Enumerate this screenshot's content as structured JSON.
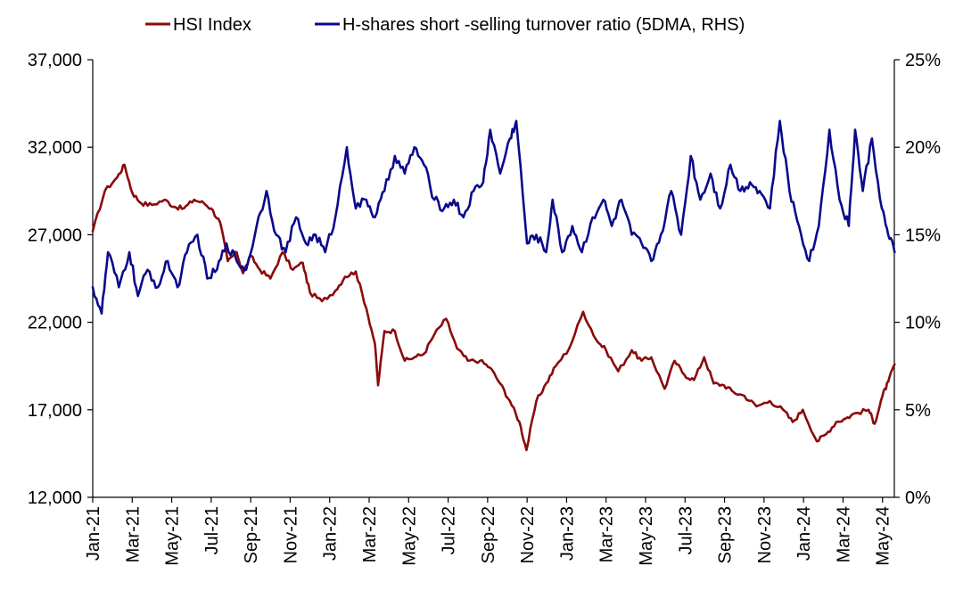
{
  "chart_data": {
    "type": "line",
    "legend": {
      "placement": "top",
      "items": [
        {
          "label": "HSI Index",
          "color": "#8B0A0A"
        },
        {
          "label": "H-shares short -selling turnover ratio (5DMA, RHS)",
          "color": "#0A0A8C"
        }
      ]
    },
    "x_tick_labels": [
      "Jan-21",
      "Mar-21",
      "May-21",
      "Jul-21",
      "Sep-21",
      "Nov-21",
      "Jan-22",
      "Mar-22",
      "May-22",
      "Jul-22",
      "Sep-22",
      "Nov-22",
      "Jan-23",
      "Mar-23",
      "May-23",
      "Jul-23",
      "Sep-23",
      "Nov-23",
      "Jan-24",
      "Mar-24",
      "May-24"
    ],
    "x_range_months": [
      0,
      40.6
    ],
    "y_left": {
      "range": [
        12000,
        37000
      ],
      "ticks": [
        12000,
        17000,
        22000,
        27000,
        32000,
        37000
      ],
      "tick_labels": [
        "12,000",
        "17,000",
        "22,000",
        "27,000",
        "32,000",
        "37,000"
      ]
    },
    "y_right": {
      "range": [
        0,
        25
      ],
      "ticks": [
        0,
        5,
        10,
        15,
        20,
        25
      ],
      "tick_labels": [
        "0%",
        "5%",
        "10%",
        "15%",
        "20%",
        "25%"
      ]
    },
    "grid": false,
    "series": [
      {
        "name": "HSI Index",
        "axis": "left",
        "color": "#8B0A0A",
        "points": [
          {
            "x": "2021-01-01",
            "y": 27200
          },
          {
            "x": "2021-01-20",
            "y": 29500
          },
          {
            "x": "2021-02-08",
            "y": 30300
          },
          {
            "x": "2021-02-18",
            "y": 31000
          },
          {
            "x": "2021-03-01",
            "y": 29400
          },
          {
            "x": "2021-03-15",
            "y": 28800
          },
          {
            "x": "2021-04-01",
            "y": 28700
          },
          {
            "x": "2021-04-20",
            "y": 29000
          },
          {
            "x": "2021-05-05",
            "y": 28600
          },
          {
            "x": "2021-05-20",
            "y": 28500
          },
          {
            "x": "2021-06-05",
            "y": 29000
          },
          {
            "x": "2021-06-20",
            "y": 28800
          },
          {
            "x": "2021-07-01",
            "y": 28500
          },
          {
            "x": "2021-07-15",
            "y": 27700
          },
          {
            "x": "2021-07-27",
            "y": 25500
          },
          {
            "x": "2021-08-10",
            "y": 26000
          },
          {
            "x": "2021-08-20",
            "y": 24800
          },
          {
            "x": "2021-09-01",
            "y": 25800
          },
          {
            "x": "2021-09-15",
            "y": 25000
          },
          {
            "x": "2021-10-01",
            "y": 24500
          },
          {
            "x": "2021-10-20",
            "y": 26000
          },
          {
            "x": "2021-11-05",
            "y": 25000
          },
          {
            "x": "2021-11-20",
            "y": 25400
          },
          {
            "x": "2021-12-01",
            "y": 23700
          },
          {
            "x": "2021-12-20",
            "y": 23200
          },
          {
            "x": "2022-01-10",
            "y": 23800
          },
          {
            "x": "2022-01-25",
            "y": 24600
          },
          {
            "x": "2022-02-10",
            "y": 24900
          },
          {
            "x": "2022-02-25",
            "y": 22800
          },
          {
            "x": "2022-03-10",
            "y": 20800
          },
          {
            "x": "2022-03-15",
            "y": 18400
          },
          {
            "x": "2022-03-25",
            "y": 21500
          },
          {
            "x": "2022-04-10",
            "y": 21500
          },
          {
            "x": "2022-04-25",
            "y": 19800
          },
          {
            "x": "2022-05-10",
            "y": 20000
          },
          {
            "x": "2022-05-25",
            "y": 20200
          },
          {
            "x": "2022-06-10",
            "y": 21300
          },
          {
            "x": "2022-06-28",
            "y": 22200
          },
          {
            "x": "2022-07-15",
            "y": 20500
          },
          {
            "x": "2022-08-01",
            "y": 19800
          },
          {
            "x": "2022-08-20",
            "y": 19800
          },
          {
            "x": "2022-09-05",
            "y": 19400
          },
          {
            "x": "2022-09-20",
            "y": 18500
          },
          {
            "x": "2022-10-05",
            "y": 17500
          },
          {
            "x": "2022-10-20",
            "y": 16300
          },
          {
            "x": "2022-10-31",
            "y": 14700
          },
          {
            "x": "2022-11-15",
            "y": 17500
          },
          {
            "x": "2022-11-30",
            "y": 18500
          },
          {
            "x": "2022-12-15",
            "y": 19500
          },
          {
            "x": "2023-01-05",
            "y": 20500
          },
          {
            "x": "2023-01-27",
            "y": 22600
          },
          {
            "x": "2023-02-15",
            "y": 21000
          },
          {
            "x": "2023-03-01",
            "y": 20400
          },
          {
            "x": "2023-03-20",
            "y": 19200
          },
          {
            "x": "2023-04-10",
            "y": 20400
          },
          {
            "x": "2023-04-25",
            "y": 19800
          },
          {
            "x": "2023-05-10",
            "y": 20000
          },
          {
            "x": "2023-05-31",
            "y": 18200
          },
          {
            "x": "2023-06-15",
            "y": 19800
          },
          {
            "x": "2023-06-30",
            "y": 19000
          },
          {
            "x": "2023-07-15",
            "y": 18700
          },
          {
            "x": "2023-07-31",
            "y": 20000
          },
          {
            "x": "2023-08-15",
            "y": 18500
          },
          {
            "x": "2023-08-31",
            "y": 18400
          },
          {
            "x": "2023-09-15",
            "y": 18000
          },
          {
            "x": "2023-10-01",
            "y": 17800
          },
          {
            "x": "2023-10-20",
            "y": 17200
          },
          {
            "x": "2023-11-10",
            "y": 17500
          },
          {
            "x": "2023-11-30",
            "y": 17000
          },
          {
            "x": "2023-12-15",
            "y": 16300
          },
          {
            "x": "2023-12-31",
            "y": 17000
          },
          {
            "x": "2024-01-22",
            "y": 15200
          },
          {
            "x": "2024-02-05",
            "y": 15600
          },
          {
            "x": "2024-02-20",
            "y": 16300
          },
          {
            "x": "2024-03-05",
            "y": 16500
          },
          {
            "x": "2024-03-20",
            "y": 16800
          },
          {
            "x": "2024-04-10",
            "y": 17000
          },
          {
            "x": "2024-04-19",
            "y": 16200
          },
          {
            "x": "2024-05-01",
            "y": 17800
          },
          {
            "x": "2024-05-10",
            "y": 18600
          },
          {
            "x": "2024-05-20",
            "y": 19600
          }
        ]
      },
      {
        "name": "H-shares short -selling turnover ratio (5DMA, RHS)",
        "axis": "right",
        "color": "#0A0A8C",
        "points": [
          {
            "x": "2021-01-01",
            "y": 12.0
          },
          {
            "x": "2021-01-15",
            "y": 10.5
          },
          {
            "x": "2021-01-25",
            "y": 14.0
          },
          {
            "x": "2021-02-10",
            "y": 12.0
          },
          {
            "x": "2021-02-25",
            "y": 14.0
          },
          {
            "x": "2021-03-10",
            "y": 11.5
          },
          {
            "x": "2021-03-25",
            "y": 13.0
          },
          {
            "x": "2021-04-10",
            "y": 12.0
          },
          {
            "x": "2021-04-25",
            "y": 13.5
          },
          {
            "x": "2021-05-10",
            "y": 12.0
          },
          {
            "x": "2021-05-25",
            "y": 14.0
          },
          {
            "x": "2021-06-10",
            "y": 15.0
          },
          {
            "x": "2021-06-25",
            "y": 12.5
          },
          {
            "x": "2021-07-10",
            "y": 13.0
          },
          {
            "x": "2021-07-25",
            "y": 14.5
          },
          {
            "x": "2021-08-10",
            "y": 13.5
          },
          {
            "x": "2021-08-25",
            "y": 13.0
          },
          {
            "x": "2021-09-10",
            "y": 15.5
          },
          {
            "x": "2021-09-25",
            "y": 17.5
          },
          {
            "x": "2021-10-10",
            "y": 15.0
          },
          {
            "x": "2021-10-25",
            "y": 14.0
          },
          {
            "x": "2021-11-10",
            "y": 16.0
          },
          {
            "x": "2021-11-25",
            "y": 14.5
          },
          {
            "x": "2021-12-10",
            "y": 15.0
          },
          {
            "x": "2021-12-25",
            "y": 14.0
          },
          {
            "x": "2022-01-10",
            "y": 16.0
          },
          {
            "x": "2022-01-28",
            "y": 20.0
          },
          {
            "x": "2022-02-10",
            "y": 16.5
          },
          {
            "x": "2022-02-25",
            "y": 17.0
          },
          {
            "x": "2022-03-10",
            "y": 16.0
          },
          {
            "x": "2022-03-25",
            "y": 17.5
          },
          {
            "x": "2022-04-10",
            "y": 19.5
          },
          {
            "x": "2022-04-25",
            "y": 18.5
          },
          {
            "x": "2022-05-10",
            "y": 20.0
          },
          {
            "x": "2022-05-25",
            "y": 19.0
          },
          {
            "x": "2022-06-10",
            "y": 17.0
          },
          {
            "x": "2022-06-25",
            "y": 16.5
          },
          {
            "x": "2022-07-10",
            "y": 17.0
          },
          {
            "x": "2022-07-25",
            "y": 16.0
          },
          {
            "x": "2022-08-10",
            "y": 17.5
          },
          {
            "x": "2022-08-25",
            "y": 18.0
          },
          {
            "x": "2022-09-05",
            "y": 21.0
          },
          {
            "x": "2022-09-20",
            "y": 18.5
          },
          {
            "x": "2022-10-05",
            "y": 20.5
          },
          {
            "x": "2022-10-15",
            "y": 21.5
          },
          {
            "x": "2022-11-01",
            "y": 14.5
          },
          {
            "x": "2022-11-15",
            "y": 15.0
          },
          {
            "x": "2022-11-30",
            "y": 14.0
          },
          {
            "x": "2022-12-10",
            "y": 17.0
          },
          {
            "x": "2022-12-25",
            "y": 14.0
          },
          {
            "x": "2023-01-10",
            "y": 15.5
          },
          {
            "x": "2023-01-25",
            "y": 14.0
          },
          {
            "x": "2023-02-10",
            "y": 16.0
          },
          {
            "x": "2023-02-25",
            "y": 17.0
          },
          {
            "x": "2023-03-10",
            "y": 15.5
          },
          {
            "x": "2023-03-25",
            "y": 17.0
          },
          {
            "x": "2023-04-10",
            "y": 15.0
          },
          {
            "x": "2023-04-25",
            "y": 14.5
          },
          {
            "x": "2023-05-10",
            "y": 13.5
          },
          {
            "x": "2023-05-25",
            "y": 15.0
          },
          {
            "x": "2023-06-10",
            "y": 17.5
          },
          {
            "x": "2023-06-25",
            "y": 15.0
          },
          {
            "x": "2023-07-10",
            "y": 19.5
          },
          {
            "x": "2023-07-25",
            "y": 17.0
          },
          {
            "x": "2023-08-10",
            "y": 18.5
          },
          {
            "x": "2023-08-25",
            "y": 16.5
          },
          {
            "x": "2023-09-10",
            "y": 19.0
          },
          {
            "x": "2023-09-25",
            "y": 17.5
          },
          {
            "x": "2023-10-10",
            "y": 18.0
          },
          {
            "x": "2023-10-25",
            "y": 17.5
          },
          {
            "x": "2023-11-10",
            "y": 16.5
          },
          {
            "x": "2023-11-25",
            "y": 21.5
          },
          {
            "x": "2023-12-10",
            "y": 17.5
          },
          {
            "x": "2023-12-25",
            "y": 15.5
          },
          {
            "x": "2024-01-10",
            "y": 13.5
          },
          {
            "x": "2024-01-25",
            "y": 15.5
          },
          {
            "x": "2024-02-10",
            "y": 21.0
          },
          {
            "x": "2024-02-25",
            "y": 17.0
          },
          {
            "x": "2024-03-10",
            "y": 15.5
          },
          {
            "x": "2024-03-20",
            "y": 21.0
          },
          {
            "x": "2024-04-01",
            "y": 17.5
          },
          {
            "x": "2024-04-15",
            "y": 20.5
          },
          {
            "x": "2024-04-30",
            "y": 16.5
          },
          {
            "x": "2024-05-10",
            "y": 15.0
          },
          {
            "x": "2024-05-20",
            "y": 14.0
          }
        ]
      }
    ]
  }
}
